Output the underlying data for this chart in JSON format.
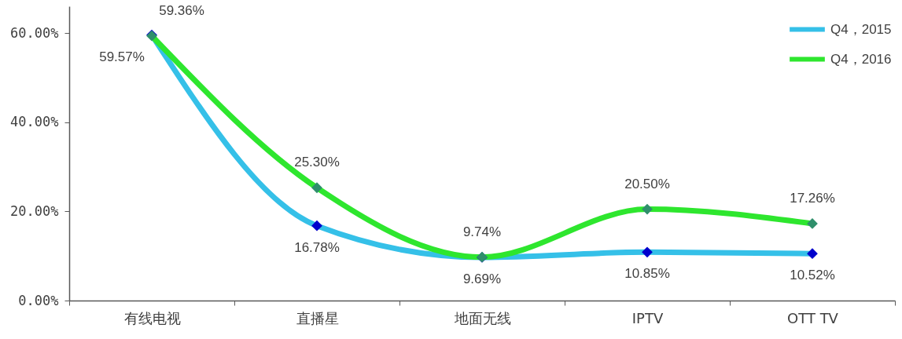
{
  "chart_data": {
    "type": "line",
    "categories": [
      "有线电视",
      "直播星",
      "地面无线",
      "IPTV",
      "OTT TV"
    ],
    "series": [
      {
        "name": "Q4，2015",
        "color": "#35c0e8",
        "colors": [
          "#0000cc",
          "#0000cc",
          "#0000cc",
          "#0000cc",
          "#0000cc"
        ],
        "values": [
          59.57,
          16.78,
          9.69,
          10.85,
          10.52
        ],
        "value_labels": [
          "59.57%",
          "16.78%",
          "9.69%",
          "10.85%",
          "10.52%"
        ]
      },
      {
        "name": "Q4，2016",
        "color": "#2ee62e",
        "colors": [
          "#2f8f6b",
          "#2f8f6b",
          "#2f8f6b",
          "#2f8f6b",
          "#2f8f6b"
        ],
        "values": [
          59.36,
          25.3,
          9.74,
          20.5,
          17.26
        ],
        "value_labels": [
          "59.36%",
          "25.30%",
          "9.74%",
          "20.50%",
          "17.26%"
        ]
      }
    ],
    "ylim": [
      0,
      66
    ],
    "yticks": [
      {
        "value": 0,
        "label": "0.00%"
      },
      {
        "value": 20,
        "label": "20.00%"
      },
      {
        "value": 40,
        "label": "40.00%"
      },
      {
        "value": 60,
        "label": "60.00%"
      }
    ],
    "grid": false,
    "legend": "top right",
    "marker": "diamond",
    "line_style": "solid"
  }
}
